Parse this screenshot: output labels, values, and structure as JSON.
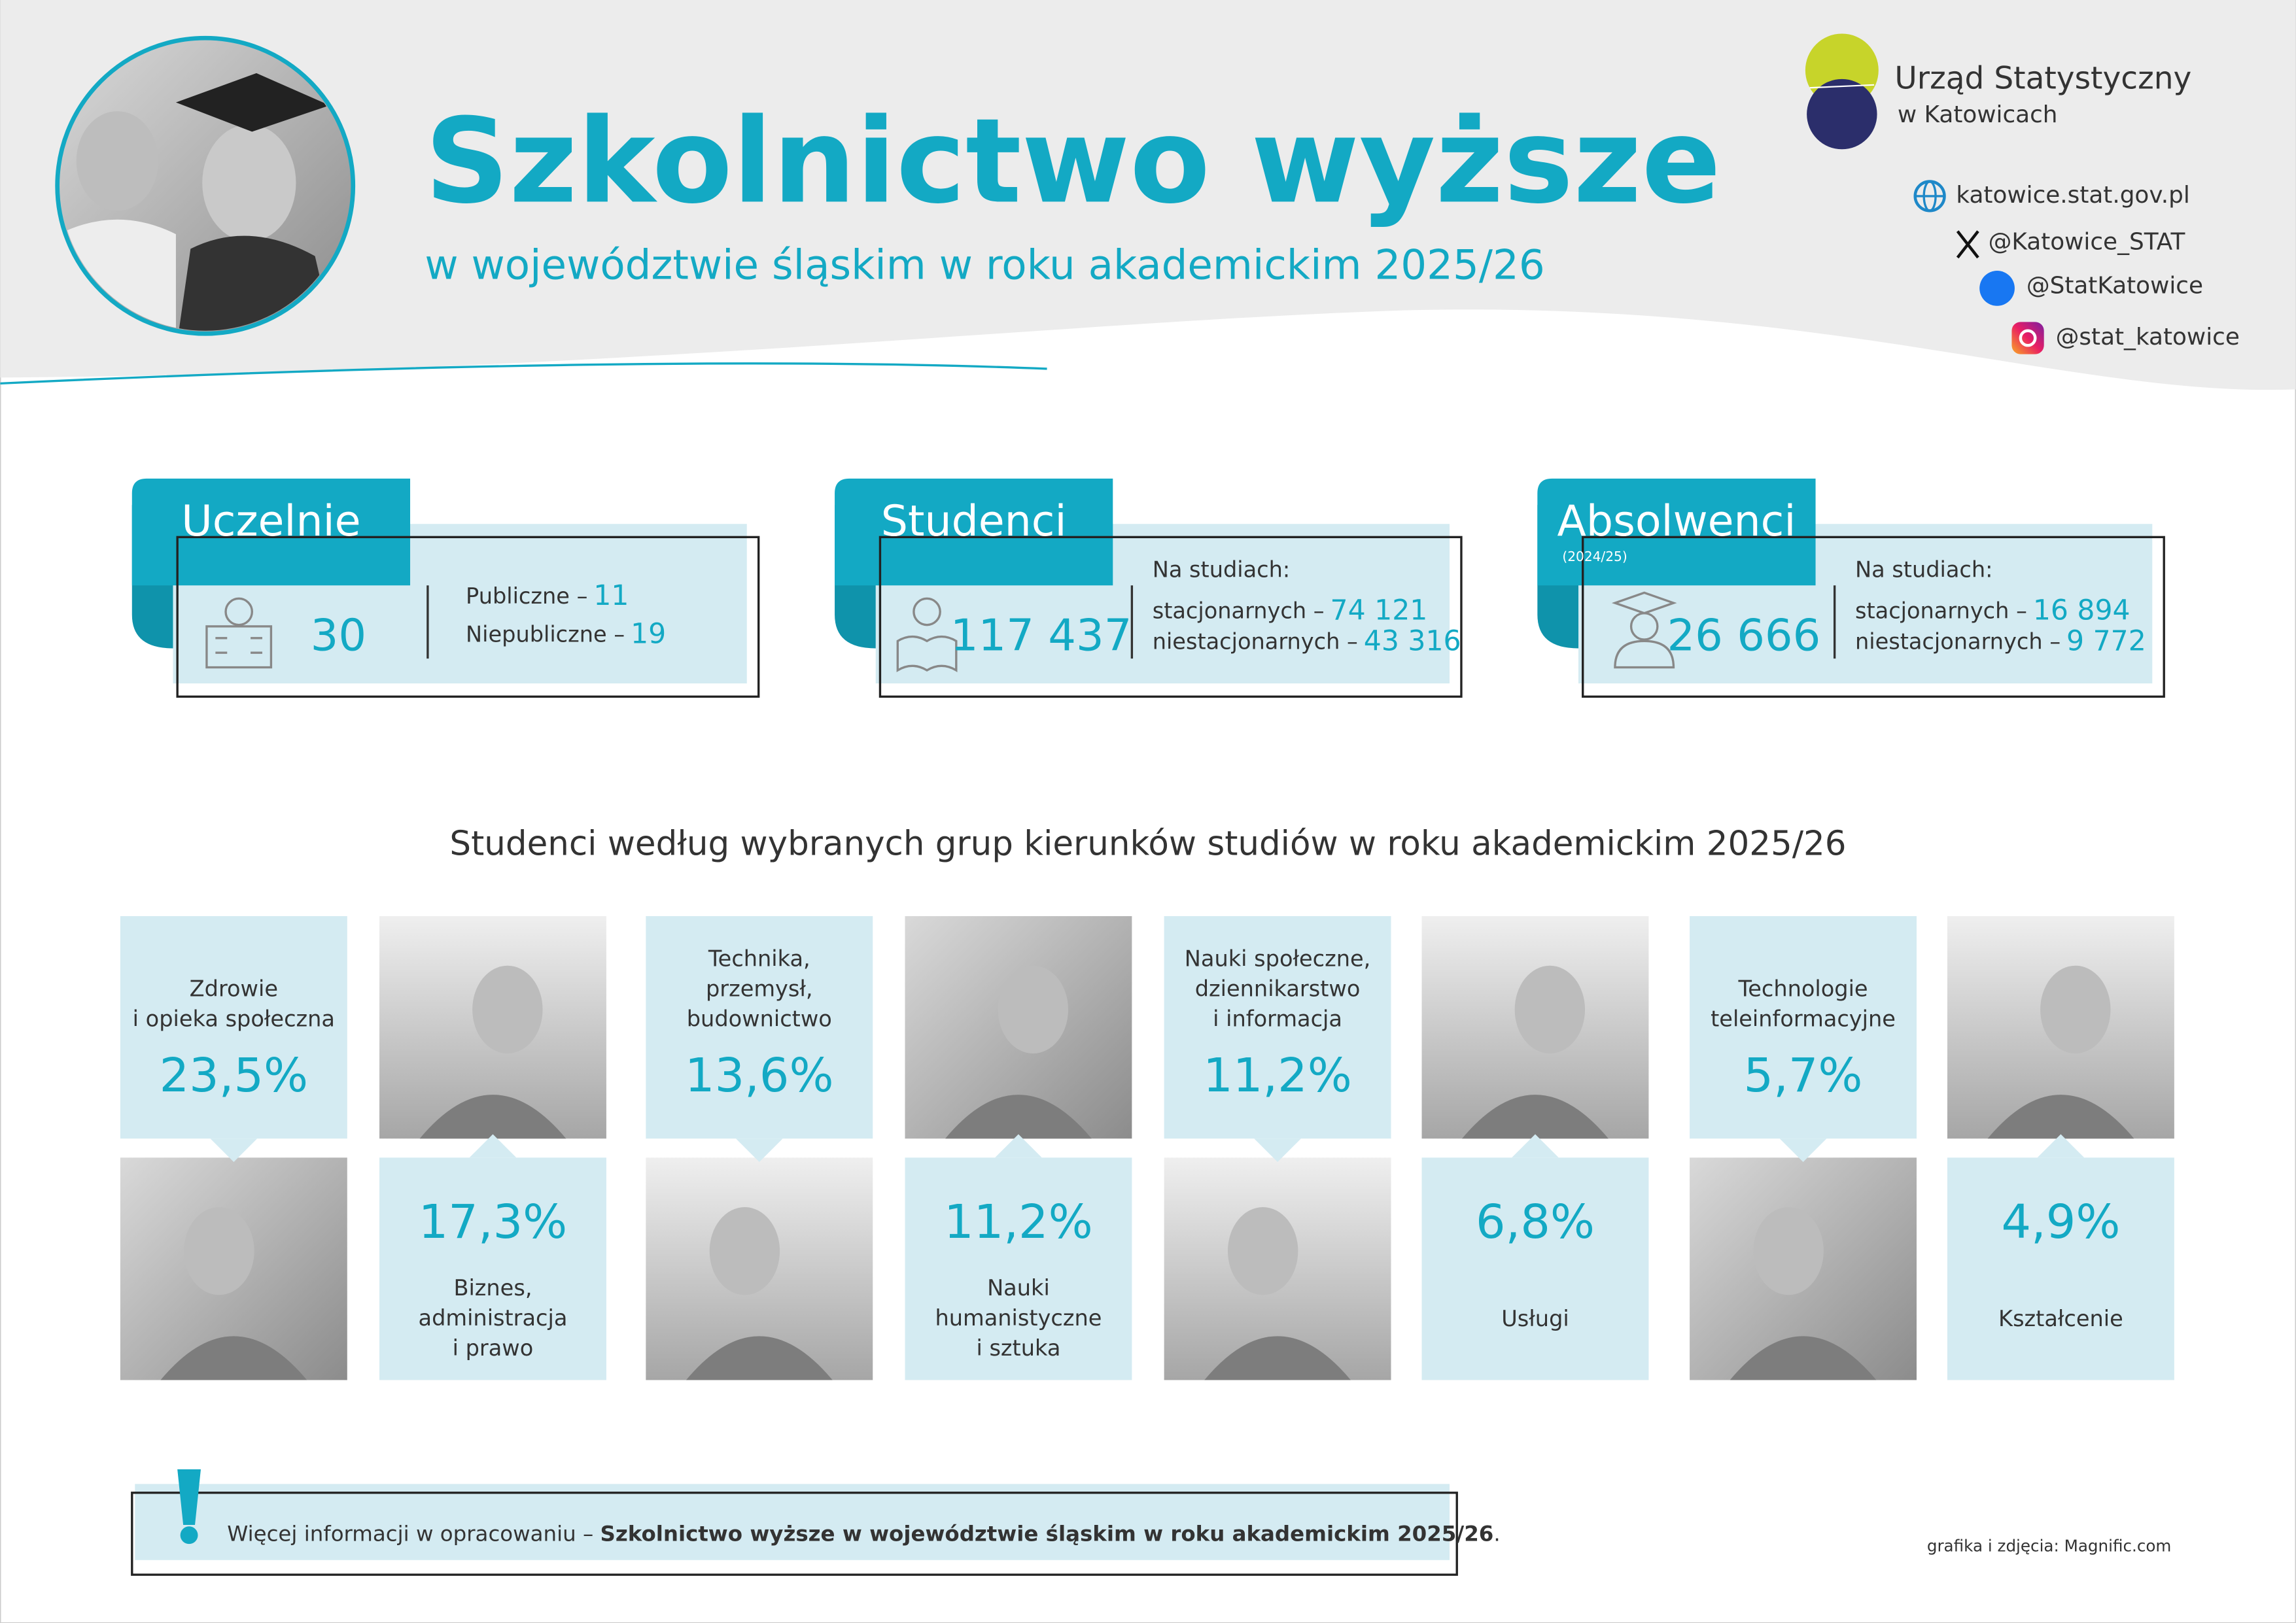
{
  "header": {
    "title": "Szkolnictwo wyższe",
    "subtitle": "w województwie śląskim w roku akademickim 2025/26"
  },
  "logo": {
    "line1": "Urząd Statystyczny",
    "line2": "w Katowicach"
  },
  "social": [
    "katowice.stat.gov.pl",
    "@Katowice_STAT",
    "@StatKatowice",
    "@stat_katowice"
  ],
  "cards": [
    {
      "title": "Uczelnie",
      "total": "30",
      "details": [
        {
          "label": "Publiczne –",
          "value": "11"
        },
        {
          "label": "Niepubliczne –",
          "value": "19"
        }
      ]
    },
    {
      "title": "Studenci",
      "note": "Na studiach:",
      "total": "117 437",
      "details": [
        {
          "label": "stacjonarnych –",
          "value": "74 121"
        },
        {
          "label": "niestacjonarnych –",
          "value": "43 316"
        }
      ]
    },
    {
      "title": "Absolwenci",
      "period": "(2024/25)",
      "note": "Na studiach:",
      "total": "26 666",
      "details": [
        {
          "label": "stacjonarnych –",
          "value": "16 894"
        },
        {
          "label": "niestacjonarnych –",
          "value": "9 772"
        }
      ]
    }
  ],
  "fields_title": "Studenci według wybranych grup kierunków studiów w roku akademickim 2025/26",
  "fields": [
    {
      "label": [
        "Zdrowie",
        "i opieka społeczna"
      ],
      "value": "23,5%"
    },
    {
      "label": [
        "Biznes,",
        "administracja",
        "i prawo"
      ],
      "value": "17,3%"
    },
    {
      "label": [
        "Technika,",
        "przemysł,",
        "budownictwo"
      ],
      "value": "13,6%"
    },
    {
      "label": [
        "Nauki",
        "humanistyczne",
        "i sztuka"
      ],
      "value": "11,2%"
    },
    {
      "label": [
        "Nauki społeczne,",
        "dziennikarstwo",
        "i informacja"
      ],
      "value": "11,2%"
    },
    {
      "label": [
        "Usługi"
      ],
      "value": "6,8%"
    },
    {
      "label": [
        "Technologie",
        "teleinformacyjne"
      ],
      "value": "5,7%"
    },
    {
      "label": [
        "Kształcenie"
      ],
      "value": "4,9%"
    }
  ],
  "footer": {
    "text": "Więcej informacji w opracowaniu – ",
    "publication": "Szkolnictwo wyższe w województwie śląskim w roku akademickim 2025/26",
    "end": ".",
    "credit": "grafika i zdjęcia: Magnific.com"
  }
}
